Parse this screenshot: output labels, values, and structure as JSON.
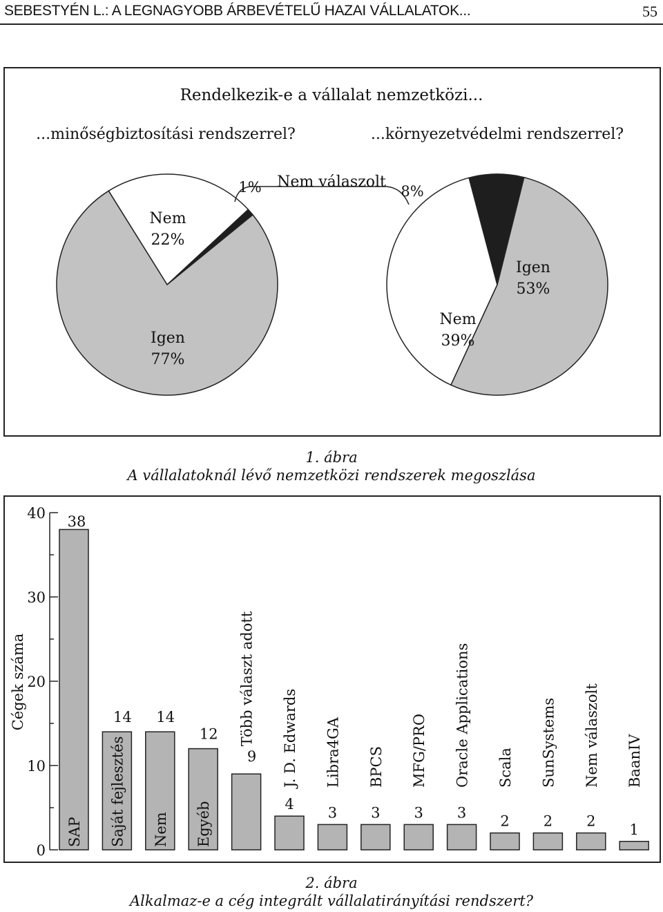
{
  "header": {
    "left": "SEBESTYÉN L.: A LEGNAGYOBB ÁRBEVÉTELŰ HAZAI VÁLLALATOK...",
    "page": "55"
  },
  "figure1": {
    "title": "Rendelkezik-e a vállalat nemzetközi...",
    "caption_number": "1. ábra",
    "caption_text": "A vállalatoknál lévő nemzetközi rendszerek megoszlása",
    "nem_valaszolt_label": "Nem válaszolt"
  },
  "figure2": {
    "caption_number": "2. ábra",
    "caption_text": "Alkalmaz-e a cég integrált vállalatirányítási rendszert?"
  },
  "colors": {
    "gray": "#c2c2c2",
    "white": "#ffffff",
    "black": "#1e1e1e",
    "bar": "#b4b4b4"
  },
  "chart_data": [
    {
      "type": "pie",
      "title": "...minőségbiztosítási rendszerrel?",
      "slices": [
        {
          "label": "Igen",
          "value": 77,
          "value_label": "77%",
          "color": "#c2c2c2"
        },
        {
          "label": "Nem",
          "value": 22,
          "value_label": "22%",
          "color": "#ffffff"
        },
        {
          "label": "",
          "value": 1,
          "value_label": "1%",
          "color": "#1e1e1e"
        }
      ]
    },
    {
      "type": "pie",
      "title": "...környezetvédelmi rendszerrel?",
      "slices": [
        {
          "label": "Igen",
          "value": 53,
          "value_label": "53%",
          "color": "#c2c2c2"
        },
        {
          "label": "Nem",
          "value": 39,
          "value_label": "39%",
          "color": "#ffffff"
        },
        {
          "label": "",
          "value": 8,
          "value_label": "8%",
          "color": "#1e1e1e"
        }
      ]
    },
    {
      "type": "bar",
      "ylabel": "Cégek száma",
      "ylim": [
        0,
        40
      ],
      "yticks": [
        0,
        10,
        20,
        30,
        40
      ],
      "categories": [
        "SAP",
        "Saját fejlesztés",
        "Nem",
        "Egyéb",
        "Több választ adott",
        "J. D. Edwards",
        "Libra4GA",
        "BPCS",
        "MFG/PRO",
        "Oracle Applications",
        "Scala",
        "SunSystems",
        "Nem válaszolt",
        "BaanIV"
      ],
      "values": [
        38,
        14,
        14,
        12,
        9,
        4,
        3,
        3,
        3,
        3,
        2,
        2,
        2,
        1
      ]
    }
  ]
}
